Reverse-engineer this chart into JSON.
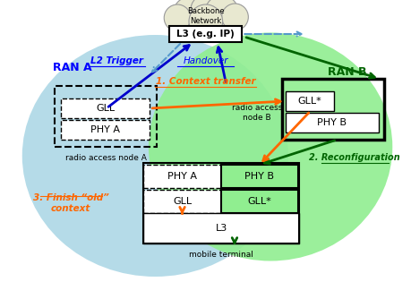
{
  "background_color": "#ffffff",
  "ran_a_color": "#add8e6",
  "ran_b_color": "#90ee90",
  "cloud_color": "#e8e8d0",
  "cloud_border": "#999999",
  "ran_a_label": "RAN A",
  "ran_b_label": "RAN B",
  "backbone_label": "Backbone\nNetwork",
  "l3_ip_label": "L3 (e.g. IP)",
  "ran_a_node_label": "radio access node A",
  "ran_b_node_label": "radio access\nnode B",
  "mobile_label": "mobile terminal",
  "l2_trigger": "L2 Trigger",
  "handover": "Handover",
  "context_transfer": "1. Context transfer",
  "reconfiguration": "2. Reconfiguration",
  "finish_old": "3. Finish “old”\ncontext",
  "arrow_orange": "#ff6600",
  "arrow_blue": "#0000cc",
  "arrow_green": "#006400",
  "arrow_cyan_dashed": "#5599cc",
  "text_blue": "#0000ff",
  "text_orange": "#ff6600",
  "text_green": "#006400"
}
